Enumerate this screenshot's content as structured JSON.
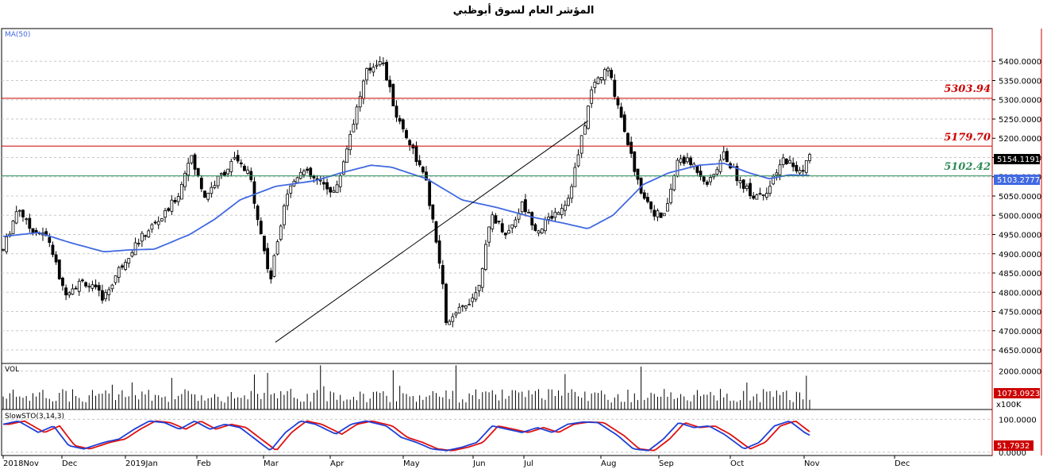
{
  "title": "المؤشر العام لسوق أبوظبي",
  "colors": {
    "ma": "#4169e1",
    "resistance": "#cc0000",
    "support": "#2e8b57",
    "trendline": "#000000",
    "stoch_k": "#1f3fd6",
    "stoch_d": "#e01010",
    "candle": "#000000",
    "axis_red": "#cc0000"
  },
  "chart_data": [
    {
      "type": "candlestick",
      "pane": "price",
      "indicator_label": "MA(50)",
      "y_ticks": [
        "4650.0000",
        "4700.0000",
        "4750.0000",
        "4800.0000",
        "4850.0000",
        "4900.0000",
        "4950.0000",
        "5000.0000",
        "5050.0000",
        "5100.0000",
        "5150.0000",
        "5200.0000",
        "5250.0000",
        "5300.0000",
        "5350.0000",
        "5400.0000"
      ],
      "ylim": [
        4615,
        5485
      ],
      "x_labels": [
        "2018Nov",
        "Dec",
        "2019Jan",
        "Feb",
        "Mar",
        "Apr",
        "May",
        "Jun",
        "Jul",
        "Aug",
        "Sep",
        "Oct",
        "Nov",
        "Dec"
      ],
      "levels": [
        {
          "value": 5303.94,
          "label": "5303.94",
          "style": "resistance"
        },
        {
          "value": 5179.7,
          "label": "5179.70",
          "style": "resistance"
        },
        {
          "value": 5102.42,
          "label": "5102.42",
          "style": "support"
        }
      ],
      "last_close_label": "5154.1191",
      "ma_readout_label": "5103.2777",
      "trendline": [
        [
          2019.37,
          4670
        ],
        [
          2019.99,
          5245
        ]
      ],
      "close_anchors": [
        [
          2018.83,
          4910
        ],
        [
          2018.86,
          5025
        ],
        [
          2018.88,
          4970
        ],
        [
          2018.92,
          4940
        ],
        [
          2018.95,
          4800
        ],
        [
          2018.99,
          4830
        ],
        [
          2019.03,
          4785
        ],
        [
          2019.06,
          4860
        ],
        [
          2019.09,
          4920
        ],
        [
          2019.12,
          4965
        ],
        [
          2019.15,
          5000
        ],
        [
          2019.18,
          5060
        ],
        [
          2019.2,
          5160
        ],
        [
          2019.23,
          5050
        ],
        [
          2019.26,
          5100
        ],
        [
          2019.29,
          5145
        ],
        [
          2019.32,
          5100
        ],
        [
          2019.34,
          4960
        ],
        [
          2019.36,
          4830
        ],
        [
          2019.39,
          5050
        ],
        [
          2019.42,
          5120
        ],
        [
          2019.45,
          5090
        ],
        [
          2019.49,
          5060
        ],
        [
          2019.52,
          5220
        ],
        [
          2019.55,
          5370
        ],
        [
          2019.58,
          5410
        ],
        [
          2019.61,
          5260
        ],
        [
          2019.64,
          5180
        ],
        [
          2019.67,
          5080
        ],
        [
          2019.7,
          4840
        ],
        [
          2019.71,
          4710
        ],
        [
          2019.74,
          4760
        ],
        [
          2019.77,
          4800
        ],
        [
          2019.8,
          5000
        ],
        [
          2019.83,
          4950
        ],
        [
          2019.86,
          5030
        ],
        [
          2019.89,
          4960
        ],
        [
          2019.92,
          5000
        ],
        [
          2019.95,
          5040
        ],
        [
          2019.97,
          5150
        ],
        [
          2020.0,
          5340
        ],
        [
          2020.03,
          5380
        ],
        [
          2020.06,
          5240
        ],
        [
          2020.09,
          5080
        ],
        [
          2020.12,
          5010
        ],
        [
          2020.14,
          4990
        ],
        [
          2020.17,
          5150
        ],
        [
          2020.2,
          5130
        ],
        [
          2020.23,
          5080
        ],
        [
          2020.26,
          5160
        ],
        [
          2020.29,
          5090
        ],
        [
          2020.32,
          5050
        ],
        [
          2020.35,
          5070
        ],
        [
          2020.38,
          5150
        ],
        [
          2020.41,
          5110
        ],
        [
          2020.43,
          5154.12
        ]
      ],
      "ma50_anchors": [
        [
          2018.83,
          4945
        ],
        [
          2018.9,
          4955
        ],
        [
          2018.96,
          4930
        ],
        [
          2019.03,
          4905
        ],
        [
          2019.08,
          4910
        ],
        [
          2019.13,
          4912
        ],
        [
          2019.2,
          4950
        ],
        [
          2019.25,
          4990
        ],
        [
          2019.3,
          5040
        ],
        [
          2019.37,
          5075
        ],
        [
          2019.45,
          5090
        ],
        [
          2019.5,
          5110
        ],
        [
          2019.56,
          5130
        ],
        [
          2019.6,
          5125
        ],
        [
          2019.67,
          5095
        ],
        [
          2019.74,
          5040
        ],
        [
          2019.81,
          5020
        ],
        [
          2019.88,
          4995
        ],
        [
          2019.94,
          4980
        ],
        [
          2019.99,
          4965
        ],
        [
          2020.04,
          5000
        ],
        [
          2020.1,
          5080
        ],
        [
          2020.15,
          5110
        ],
        [
          2020.21,
          5130
        ],
        [
          2020.26,
          5135
        ],
        [
          2020.31,
          5110
        ],
        [
          2020.35,
          5095
        ],
        [
          2020.39,
          5105
        ],
        [
          2020.43,
          5103.28
        ]
      ]
    },
    {
      "type": "bar",
      "pane": "volume",
      "indicator_label": "VOL",
      "y_ticks": [
        "2000.0000"
      ],
      "ylim": [
        0,
        2400
      ],
      "last_value_label": "1073.0923",
      "unit_label": "x100K",
      "typical_volume": 800
    },
    {
      "type": "line",
      "pane": "oscillator",
      "indicator_label": "SlowSTO(3,14,3)",
      "y_ticks": [
        "100.0000",
        "0.0000"
      ],
      "ylim": [
        -10,
        130
      ],
      "last_value_label": "51.7932",
      "k_anchors": [
        [
          2018.83,
          85
        ],
        [
          2018.86,
          95
        ],
        [
          2018.9,
          60
        ],
        [
          2018.93,
          80
        ],
        [
          2018.96,
          20
        ],
        [
          2018.99,
          10
        ],
        [
          2019.03,
          30
        ],
        [
          2019.06,
          40
        ],
        [
          2019.09,
          70
        ],
        [
          2019.12,
          95
        ],
        [
          2019.15,
          90
        ],
        [
          2019.18,
          70
        ],
        [
          2019.21,
          95
        ],
        [
          2019.24,
          70
        ],
        [
          2019.27,
          85
        ],
        [
          2019.3,
          75
        ],
        [
          2019.33,
          40
        ],
        [
          2019.36,
          5
        ],
        [
          2019.39,
          60
        ],
        [
          2019.42,
          95
        ],
        [
          2019.45,
          85
        ],
        [
          2019.49,
          55
        ],
        [
          2019.52,
          85
        ],
        [
          2019.55,
          95
        ],
        [
          2019.59,
          80
        ],
        [
          2019.62,
          45
        ],
        [
          2019.65,
          30
        ],
        [
          2019.68,
          10
        ],
        [
          2019.71,
          5
        ],
        [
          2019.74,
          15
        ],
        [
          2019.77,
          30
        ],
        [
          2019.8,
          80
        ],
        [
          2019.83,
          70
        ],
        [
          2019.86,
          60
        ],
        [
          2019.89,
          75
        ],
        [
          2019.92,
          60
        ],
        [
          2019.95,
          85
        ],
        [
          2019.98,
          92
        ],
        [
          2020.01,
          90
        ],
        [
          2020.05,
          50
        ],
        [
          2020.08,
          10
        ],
        [
          2020.11,
          5
        ],
        [
          2020.14,
          40
        ],
        [
          2020.17,
          90
        ],
        [
          2020.2,
          75
        ],
        [
          2020.23,
          80
        ],
        [
          2020.26,
          55
        ],
        [
          2020.3,
          10
        ],
        [
          2020.33,
          30
        ],
        [
          2020.36,
          80
        ],
        [
          2020.39,
          95
        ],
        [
          2020.42,
          60
        ],
        [
          2020.43,
          51.79
        ]
      ]
    }
  ]
}
